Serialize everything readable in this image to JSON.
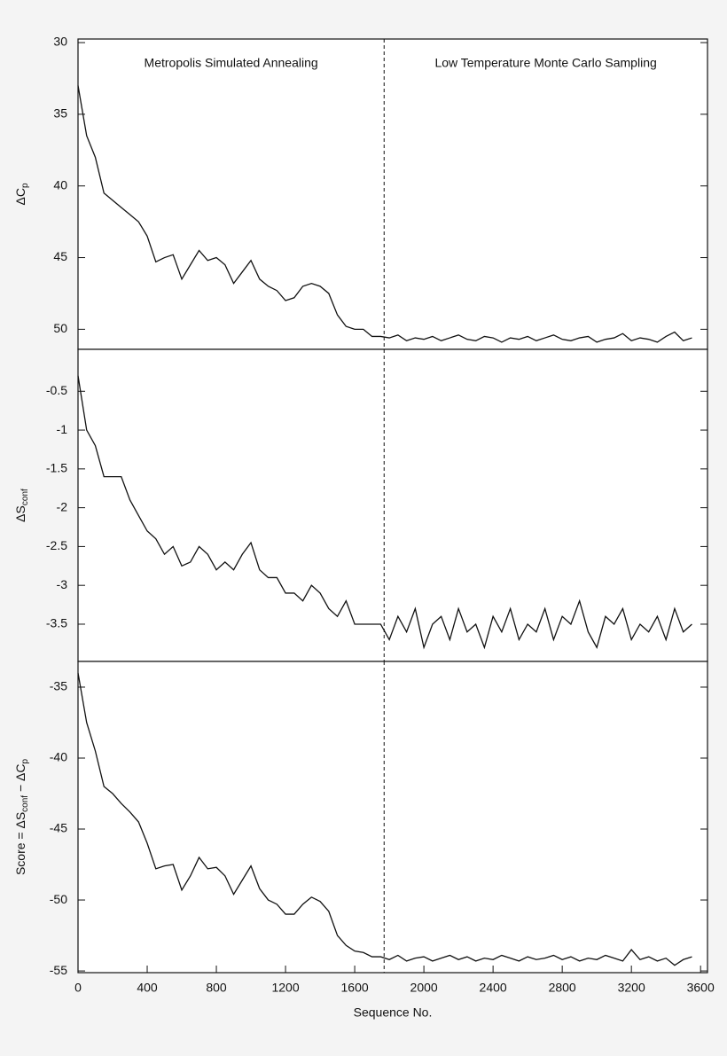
{
  "chart_data": [
    {
      "type": "line",
      "ylabel": [
        "ΔC",
        "p"
      ],
      "annotations": [
        "Metropolis Simulated Annealing",
        "Low Temperature Monte Carlo Sampling"
      ],
      "vline": 1770,
      "xlim": [
        0,
        3640
      ],
      "ylim": [
        51.4,
        29.75
      ],
      "yticks": [
        30,
        35,
        40,
        45,
        50
      ],
      "color": "#111111",
      "x": [
        0,
        50,
        100,
        150,
        200,
        250,
        300,
        350,
        400,
        450,
        500,
        550,
        600,
        650,
        700,
        750,
        800,
        850,
        900,
        950,
        1000,
        1050,
        1100,
        1150,
        1200,
        1250,
        1300,
        1350,
        1400,
        1450,
        1500,
        1550,
        1600,
        1650,
        1700,
        1750,
        1800,
        1850,
        1900,
        1950,
        2000,
        2050,
        2100,
        2150,
        2200,
        2250,
        2300,
        2350,
        2400,
        2450,
        2500,
        2550,
        2600,
        2650,
        2700,
        2750,
        2800,
        2850,
        2900,
        2950,
        3000,
        3050,
        3100,
        3150,
        3200,
        3250,
        3300,
        3350,
        3400,
        3450,
        3500,
        3550
      ],
      "values": [
        33,
        36.5,
        38,
        40.5,
        41,
        41.5,
        42,
        42.5,
        43.5,
        45.3,
        45,
        44.8,
        46.5,
        45.5,
        44.5,
        45.2,
        45,
        45.5,
        46.8,
        46,
        45.2,
        46.5,
        47,
        47.3,
        48,
        47.8,
        47,
        46.8,
        47,
        47.5,
        49,
        49.8,
        50,
        50,
        50.5,
        50.5,
        50.6,
        50.4,
        50.8,
        50.6,
        50.7,
        50.5,
        50.8,
        50.6,
        50.4,
        50.7,
        50.8,
        50.5,
        50.6,
        50.9,
        50.6,
        50.7,
        50.5,
        50.8,
        50.6,
        50.4,
        50.7,
        50.8,
        50.6,
        50.5,
        50.9,
        50.7,
        50.6,
        50.3,
        50.8,
        50.6,
        50.7,
        50.9,
        50.5,
        50.2,
        50.8,
        50.6
      ]
    },
    {
      "type": "line",
      "ylabel": [
        "ΔS",
        "conf"
      ],
      "vline": 1770,
      "xlim": [
        0,
        3640
      ],
      "ylim": [
        -3.98,
        0.04
      ],
      "yticks": [
        -0.5,
        -1,
        -1.5,
        -2,
        -2.5,
        -3,
        -3.5
      ],
      "color": "#111111",
      "x": [
        0,
        50,
        100,
        150,
        200,
        250,
        300,
        350,
        400,
        450,
        500,
        550,
        600,
        650,
        700,
        750,
        800,
        850,
        900,
        950,
        1000,
        1050,
        1100,
        1150,
        1200,
        1250,
        1300,
        1350,
        1400,
        1450,
        1500,
        1550,
        1600,
        1650,
        1700,
        1750,
        1800,
        1850,
        1900,
        1950,
        2000,
        2050,
        2100,
        2150,
        2200,
        2250,
        2300,
        2350,
        2400,
        2450,
        2500,
        2550,
        2600,
        2650,
        2700,
        2750,
        2800,
        2850,
        2900,
        2950,
        3000,
        3050,
        3100,
        3150,
        3200,
        3250,
        3300,
        3350,
        3400,
        3450,
        3500,
        3550
      ],
      "values": [
        -0.3,
        -1.0,
        -1.2,
        -1.6,
        -1.6,
        -1.6,
        -1.9,
        -2.1,
        -2.3,
        -2.4,
        -2.6,
        -2.5,
        -2.75,
        -2.7,
        -2.5,
        -2.6,
        -2.8,
        -2.7,
        -2.8,
        -2.6,
        -2.45,
        -2.8,
        -2.9,
        -2.9,
        -3.1,
        -3.1,
        -3.2,
        -3.0,
        -3.1,
        -3.3,
        -3.4,
        -3.2,
        -3.5,
        -3.5,
        -3.5,
        -3.5,
        -3.7,
        -3.4,
        -3.6,
        -3.3,
        -3.8,
        -3.5,
        -3.4,
        -3.7,
        -3.3,
        -3.6,
        -3.5,
        -3.8,
        -3.4,
        -3.6,
        -3.3,
        -3.7,
        -3.5,
        -3.6,
        -3.3,
        -3.7,
        -3.4,
        -3.5,
        -3.2,
        -3.6,
        -3.8,
        -3.4,
        -3.5,
        -3.3,
        -3.7,
        -3.5,
        -3.6,
        -3.4,
        -3.7,
        -3.3,
        -3.6,
        -3.5
      ]
    },
    {
      "type": "line",
      "ylabel": [
        "Score = ΔS",
        "conf",
        " − ΔC",
        "p"
      ],
      "xlabel": "Sequence No.",
      "vline": 1770,
      "xlim": [
        0,
        3640
      ],
      "xticks": [
        0,
        400,
        800,
        1200,
        1600,
        2000,
        2400,
        2800,
        3200,
        3600
      ],
      "ylim": [
        -55.12,
        -33.19
      ],
      "yticks": [
        -35,
        -40,
        -45,
        -50,
        -55
      ],
      "color": "#111111",
      "x": [
        0,
        50,
        100,
        150,
        200,
        250,
        300,
        350,
        400,
        450,
        500,
        550,
        600,
        650,
        700,
        750,
        800,
        850,
        900,
        950,
        1000,
        1050,
        1100,
        1150,
        1200,
        1250,
        1300,
        1350,
        1400,
        1450,
        1500,
        1550,
        1600,
        1650,
        1700,
        1750,
        1800,
        1850,
        1900,
        1950,
        2000,
        2050,
        2100,
        2150,
        2200,
        2250,
        2300,
        2350,
        2400,
        2450,
        2500,
        2550,
        2600,
        2650,
        2700,
        2750,
        2800,
        2850,
        2900,
        2950,
        3000,
        3050,
        3100,
        3150,
        3200,
        3250,
        3300,
        3350,
        3400,
        3450,
        3500,
        3550
      ],
      "values": [
        -34,
        -37.5,
        -39.5,
        -42,
        -42.5,
        -43.2,
        -43.8,
        -44.5,
        -46,
        -47.8,
        -47.6,
        -47.5,
        -49.3,
        -48.3,
        -47,
        -47.8,
        -47.7,
        -48.3,
        -49.6,
        -48.6,
        -47.6,
        -49.2,
        -50,
        -50.3,
        -51,
        -51,
        -50.3,
        -49.8,
        -50.1,
        -50.8,
        -52.5,
        -53.2,
        -53.6,
        -53.7,
        -54,
        -54,
        -54.2,
        -53.9,
        -54.3,
        -54.1,
        -54.0,
        -54.3,
        -54.1,
        -53.9,
        -54.2,
        -54.0,
        -54.3,
        -54.1,
        -54.2,
        -53.9,
        -54.1,
        -54.3,
        -54.0,
        -54.2,
        -54.1,
        -53.9,
        -54.2,
        -54.0,
        -54.3,
        -54.1,
        -54.2,
        -53.9,
        -54.1,
        -54.3,
        -53.5,
        -54.2,
        -54.0,
        -54.3,
        -54.1,
        -54.6,
        -54.2,
        -54.0
      ]
    }
  ]
}
